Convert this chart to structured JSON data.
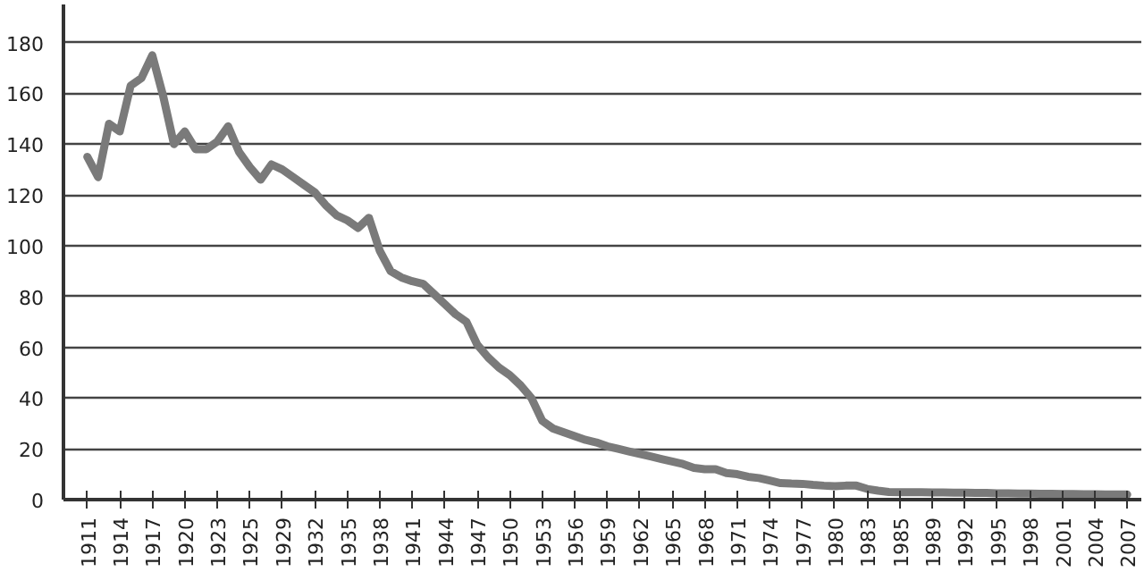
{
  "chart_data": {
    "type": "line",
    "categories": [
      "1911",
      null,
      null,
      "1914",
      null,
      null,
      "1917",
      null,
      null,
      "1920",
      null,
      null,
      "1923",
      null,
      null,
      "1925",
      null,
      null,
      "1929",
      null,
      null,
      "1932",
      null,
      null,
      "1935",
      null,
      null,
      "1938",
      null,
      null,
      "1941",
      null,
      null,
      "1944",
      null,
      null,
      "1947",
      null,
      null,
      "1950",
      null,
      null,
      "1953",
      null,
      null,
      "1956",
      null,
      null,
      "1959",
      null,
      null,
      "1962",
      null,
      null,
      "1965",
      null,
      null,
      "1968",
      null,
      null,
      "1971",
      null,
      null,
      "1974",
      null,
      null,
      "1977",
      null,
      null,
      "1980",
      null,
      null,
      "1983",
      null,
      null,
      "1985",
      null,
      null,
      "1989",
      null,
      null,
      "1992",
      null,
      null,
      "1995",
      null,
      null,
      "1998",
      null,
      null,
      "2001",
      null,
      null,
      "2004",
      null,
      null,
      "2007"
    ],
    "series": [
      {
        "color": "#7a7a7a",
        "values": [
          135,
          127,
          148,
          145,
          163,
          166,
          175,
          159,
          140,
          145,
          138,
          138,
          141,
          147,
          137,
          131,
          126,
          132,
          130,
          127,
          124,
          121,
          116,
          112,
          110,
          107,
          111,
          98,
          90,
          87.5,
          86,
          85,
          81,
          77,
          73,
          70,
          61,
          56,
          52,
          49,
          45,
          40,
          31,
          28,
          26.5,
          25,
          23.5,
          22.5,
          21,
          20,
          19,
          18,
          17,
          16,
          15,
          14,
          12.5,
          12,
          12,
          10.5,
          10,
          9,
          8.5,
          7.5,
          6.5,
          6.3,
          6.2,
          5.8,
          5.5,
          5.3,
          5.5,
          5.5,
          4.2,
          3.5,
          3,
          2.9,
          2.9,
          2.9,
          2.8,
          2.8,
          2.7,
          2.7,
          2.6,
          2.6,
          2.5,
          2.5,
          2.4,
          2.4,
          2.3,
          2.3,
          2.2,
          2.2,
          2.1,
          2.1,
          2.0,
          2.0,
          2.0
        ]
      }
    ],
    "ylim": [
      0,
      195
    ],
    "yticks": [
      0,
      20,
      40,
      60,
      80,
      100,
      120,
      140,
      160,
      180
    ],
    "grid": "y",
    "marker": "none",
    "line_style": "solid"
  }
}
